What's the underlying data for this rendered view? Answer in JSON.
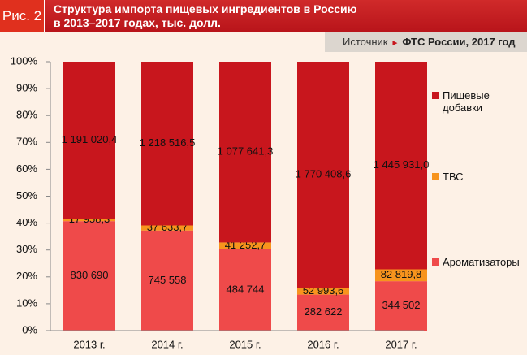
{
  "header": {
    "figure": "Рис. 2",
    "title_lines": [
      "Структура импорта пищевых ингредиентов в Россию",
      "в 2013–2017 годах, тыс. долл."
    ],
    "source_label": "Источник",
    "source": "ФТС России, 2017 год"
  },
  "chart_data": {
    "type": "stacked100",
    "categories": [
      "2013 г.",
      "2014 г.",
      "2015 г.",
      "2016 г.",
      "2017 г."
    ],
    "series": [
      {
        "name": "Ароматизаторы",
        "color": "#ef4a4a",
        "values": [
          830690,
          745558,
          484744,
          282622,
          344502
        ],
        "value_labels": [
          "830 690",
          "745 558",
          "484 744",
          "282 622",
          "344 502"
        ]
      },
      {
        "name": "ТВС",
        "color": "#f7941d",
        "values": [
          17958.3,
          37633.7,
          41252.7,
          52993.6,
          82819.8
        ],
        "value_labels": [
          "17 958,3",
          "37 633,7",
          "41 252,7",
          "52 993,6",
          "82 819,8"
        ]
      },
      {
        "name": "Пищевые добавки",
        "color": "#c8161d",
        "values": [
          1191020.4,
          1218516.5,
          1077641.3,
          1770408.6,
          1445931.0
        ],
        "value_labels": [
          "1 191 020,4",
          "1 218 516,5",
          "1 077 641,3",
          "1 770 408,6",
          "1 445 931,0"
        ]
      }
    ],
    "ylim": [
      0,
      100
    ],
    "yticks": [
      {
        "value": 0,
        "label": "0%"
      },
      {
        "value": 10,
        "label": "10%"
      },
      {
        "value": 20,
        "label": "20%"
      },
      {
        "value": 30,
        "label": "30%"
      },
      {
        "value": 40,
        "label": "40%"
      },
      {
        "value": 50,
        "label": "50%"
      },
      {
        "value": 60,
        "label": "60%"
      },
      {
        "value": 70,
        "label": "70%"
      },
      {
        "value": 80,
        "label": "80%"
      },
      {
        "value": 90,
        "label": "90%"
      },
      {
        "value": 100,
        "label": "100%"
      }
    ]
  }
}
